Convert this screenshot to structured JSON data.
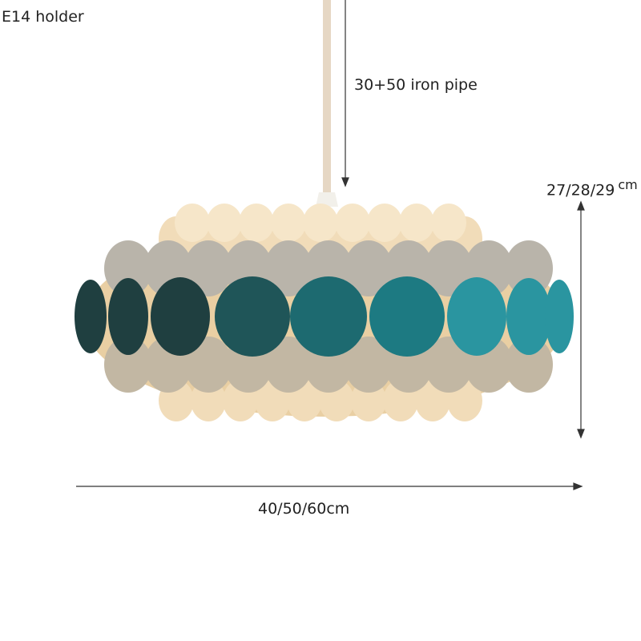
{
  "labels": {
    "holder": "E14 holder",
    "pipe": "30+50 iron pipe",
    "height": "27/28/29",
    "height_unit": "cm",
    "width": "40/50/60cm"
  },
  "colors": {
    "teal_dark": "#1f3f40",
    "teal": "#1d7a82",
    "teal_light": "#2a95a0",
    "cream": "#f1dcb9",
    "gray": "#b9b4aa",
    "pipe": "#e6d7c4"
  }
}
